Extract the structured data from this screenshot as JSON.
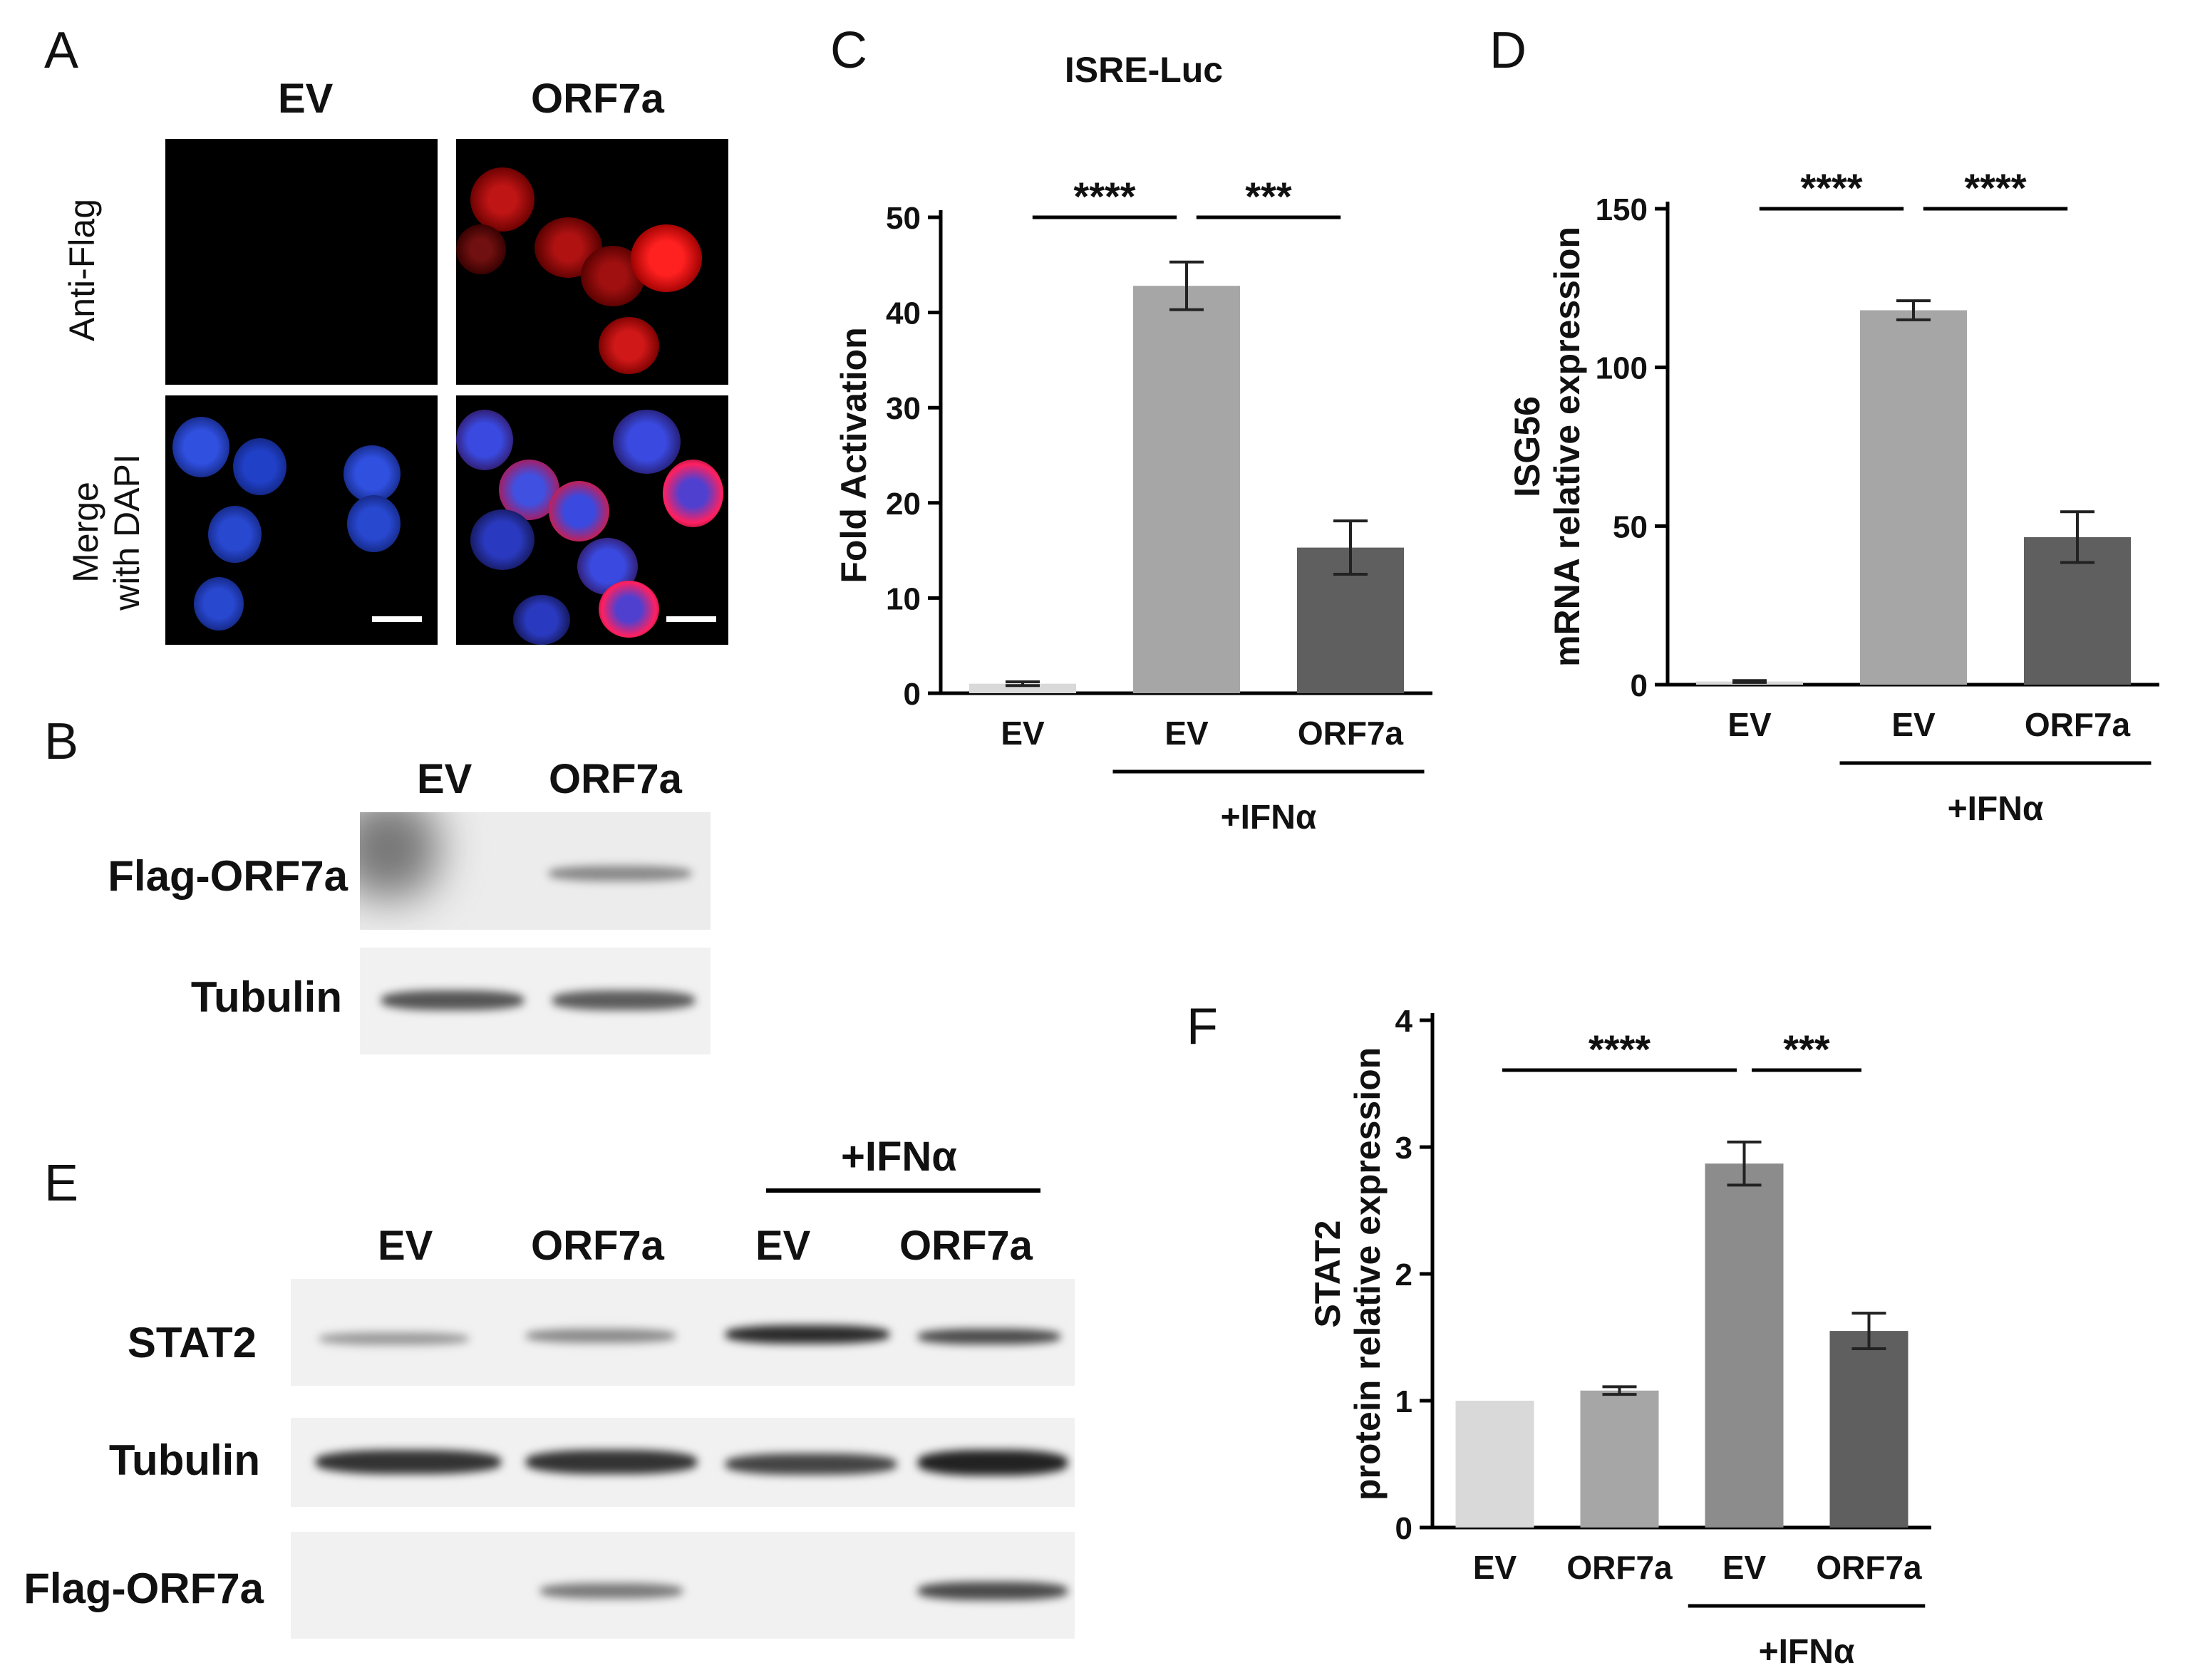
{
  "panels": {
    "A": "A",
    "B": "B",
    "C": "C",
    "D": "D",
    "E": "E",
    "F": "F"
  },
  "panel_a": {
    "col_headers": [
      "EV",
      "ORF7a"
    ],
    "row_labels": [
      "Anti-Flag",
      "Merge\nwith DAPI"
    ]
  },
  "panel_b": {
    "lanes": [
      "EV",
      "ORF7a"
    ],
    "rows": [
      "Flag-ORF7a",
      "Tubulin"
    ]
  },
  "panel_e": {
    "group": "+IFNα",
    "lanes": [
      "EV",
      "ORF7a",
      "EV",
      "ORF7a"
    ],
    "rows": [
      "STAT2",
      "Tubulin",
      "Flag-ORF7a"
    ]
  },
  "colors": {
    "light": "#d9d9d9",
    "mid": "#a6a6a6",
    "mid2": "#8c8c8c",
    "dark": "#5f5f5f",
    "red": "#e0201f",
    "blue": "#2a3fd8"
  },
  "chart_data": [
    {
      "id": "C",
      "type": "bar",
      "title": "ISRE-Luc",
      "ylabel": "Fold Activation",
      "ylim": [
        0,
        50
      ],
      "yticks": [
        0,
        10,
        20,
        30,
        40,
        50
      ],
      "categories": [
        "EV",
        "EV",
        "ORF7a"
      ],
      "values": [
        1,
        42.8,
        15.3
      ],
      "errors": [
        0.2,
        2.5,
        2.8
      ],
      "group_label": "+IFNα",
      "group_span": [
        1,
        2
      ],
      "significance": [
        {
          "from": 0,
          "to": 1,
          "label": "****"
        },
        {
          "from": 1,
          "to": 2,
          "label": "***"
        }
      ]
    },
    {
      "id": "D",
      "type": "bar",
      "title": "",
      "ylabel_lines": [
        "ISG56",
        "mRNA relative expression"
      ],
      "ylim": [
        0,
        150
      ],
      "yticks": [
        0,
        50,
        100,
        150
      ],
      "categories": [
        "EV",
        "EV",
        "ORF7a"
      ],
      "values": [
        1,
        118,
        46.5
      ],
      "errors": [
        0.3,
        3,
        8
      ],
      "group_label": "+IFNα",
      "group_span": [
        1,
        2
      ],
      "significance": [
        {
          "from": 0,
          "to": 1,
          "label": "****"
        },
        {
          "from": 1,
          "to": 2,
          "label": "****"
        }
      ]
    },
    {
      "id": "F",
      "type": "bar",
      "title": "",
      "ylabel_lines": [
        "STAT2",
        "protein relative expression"
      ],
      "ylim": [
        0,
        4
      ],
      "yticks": [
        0,
        1,
        2,
        3,
        4
      ],
      "categories": [
        "EV",
        "ORF7a",
        "EV",
        "ORF7a"
      ],
      "values": [
        1,
        1.08,
        2.87,
        1.55
      ],
      "errors": [
        0,
        0.03,
        0.17,
        0.14
      ],
      "group_label": "+IFNα",
      "group_span": [
        2,
        3
      ],
      "significance": [
        {
          "from": 0,
          "to": 2,
          "label": "****"
        },
        {
          "from": 2,
          "to": 3,
          "label": "***"
        }
      ]
    }
  ]
}
